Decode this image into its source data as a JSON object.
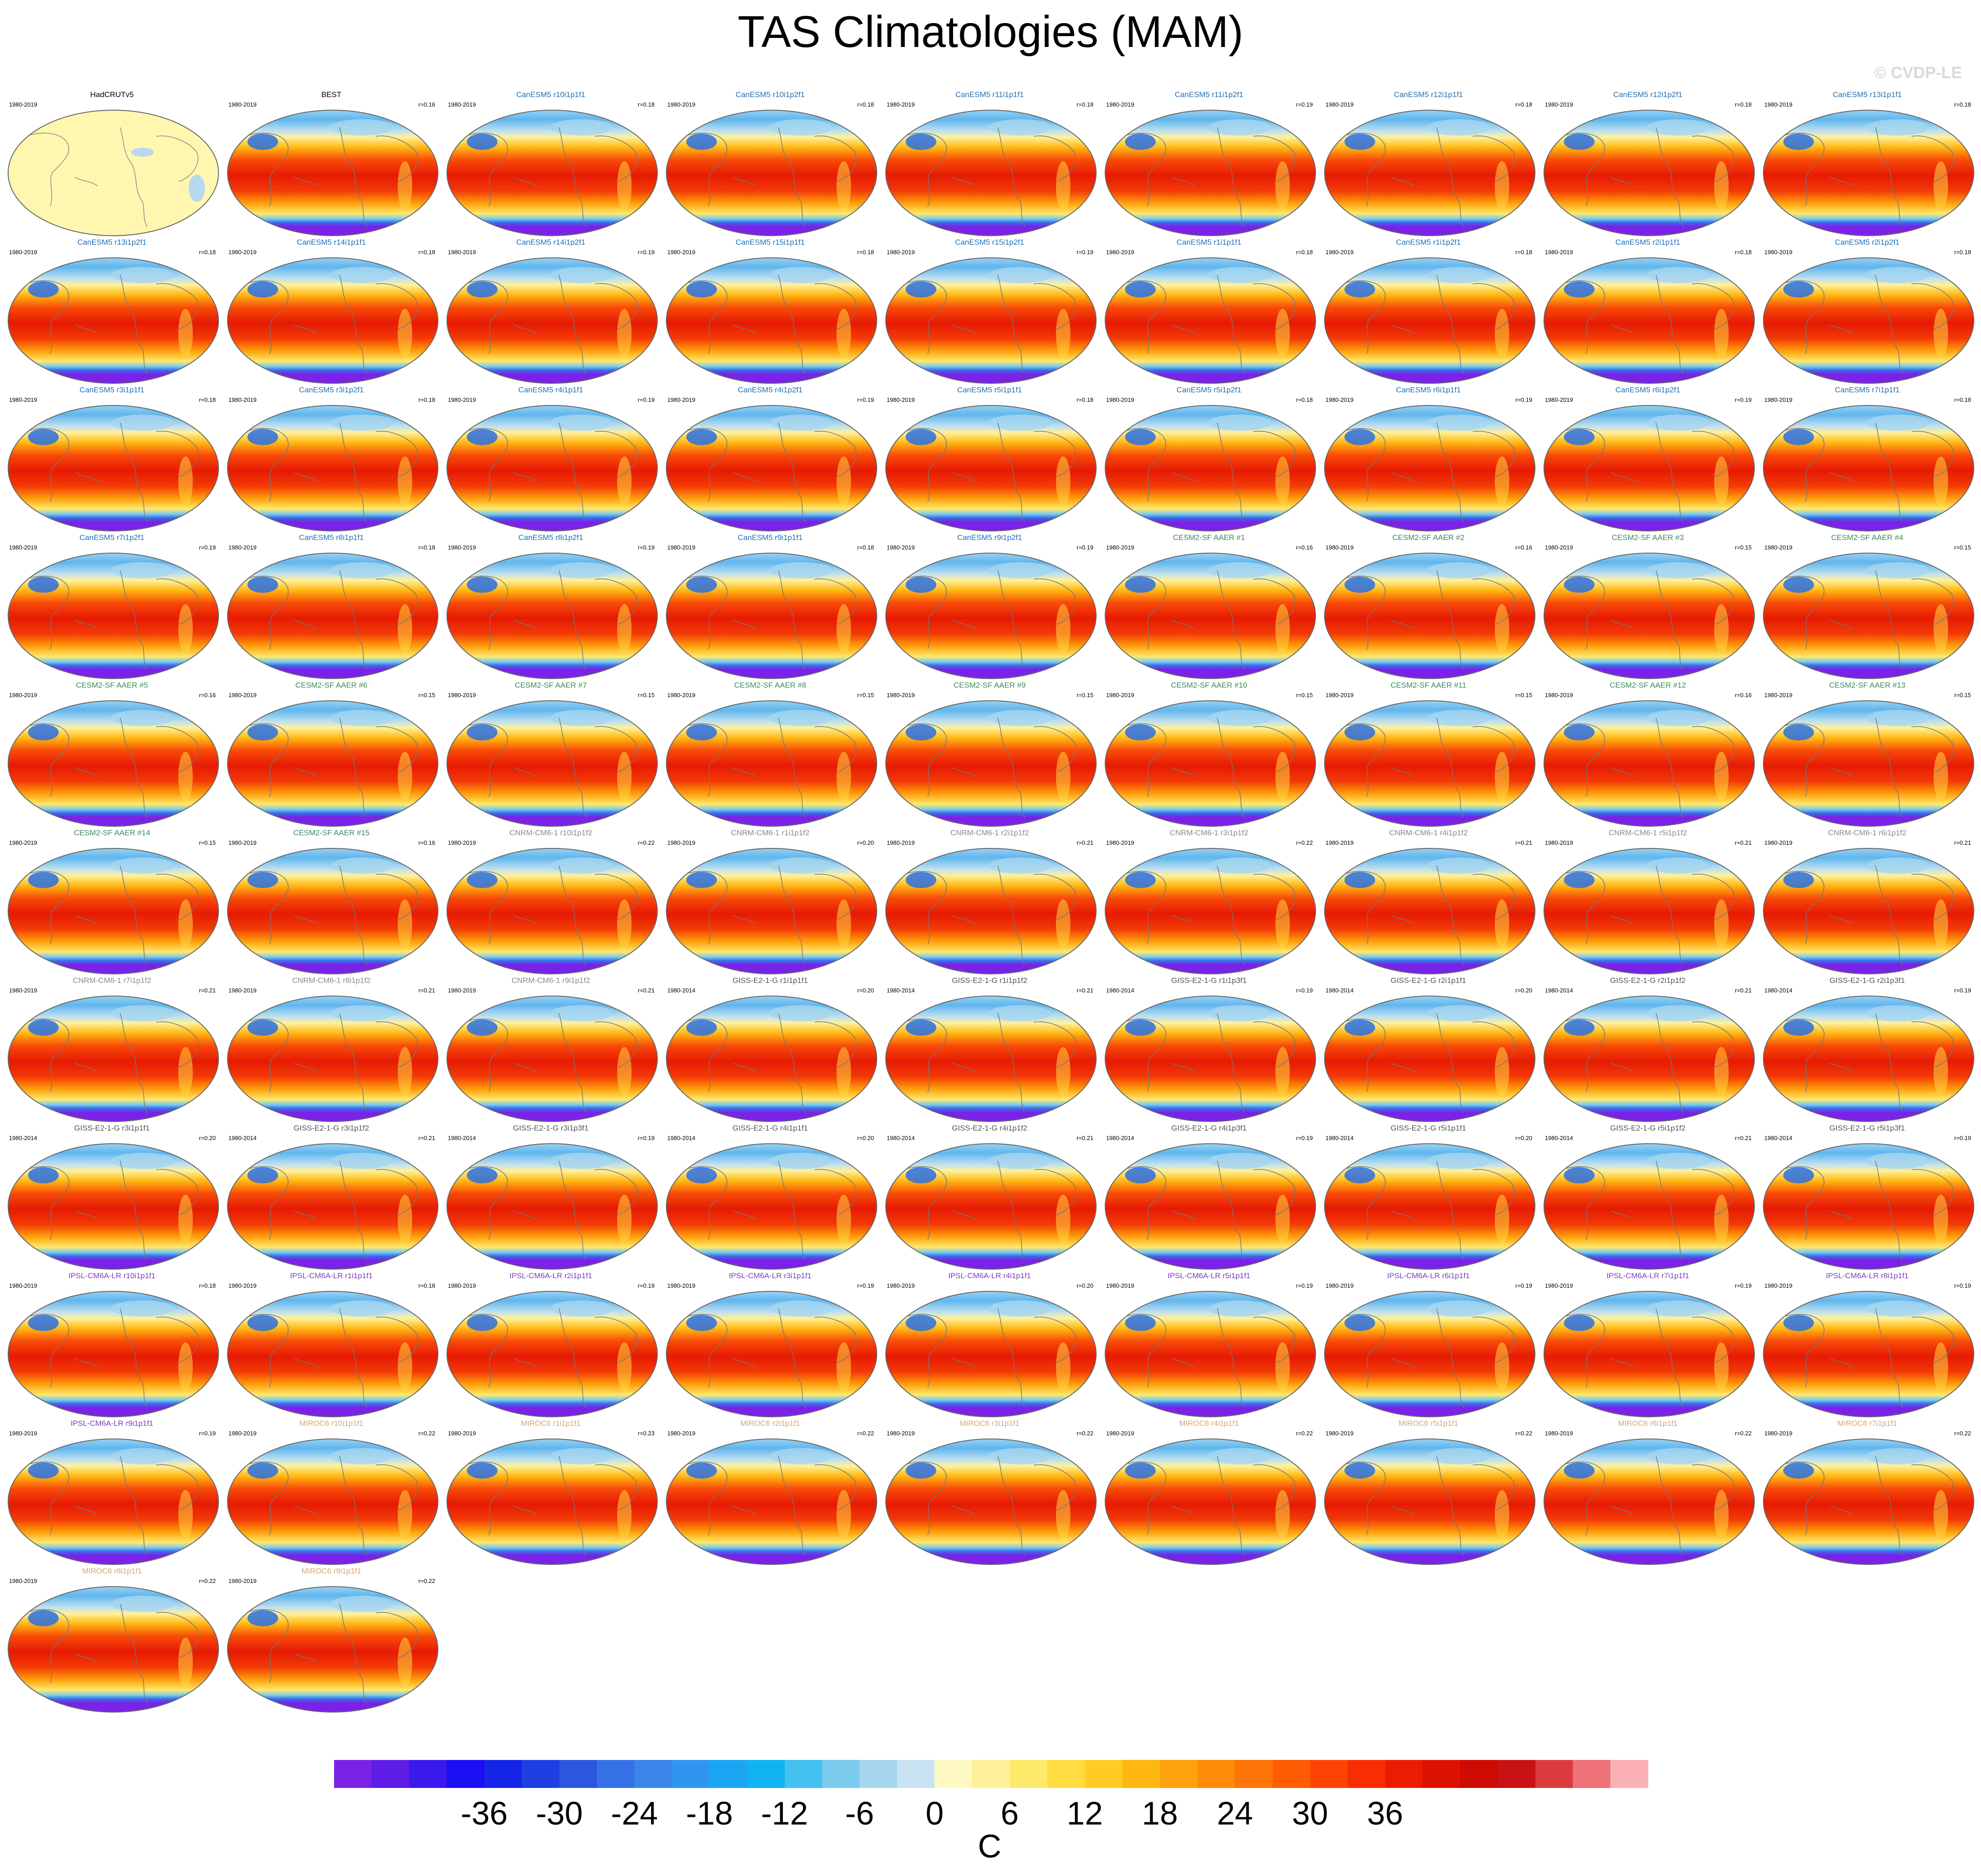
{
  "title": "TAS Climatologies (MAM)",
  "watermark": "© CVDP-LE",
  "colors": {
    "CanESM5": "#1f6fb5",
    "CESM2-SF AAER": "#3b8a5a",
    "CNRM-CM6-1": "#8a8a8a",
    "GISS-E2-1-G": "#555555",
    "IPSL-CM6A-LR": "#7b3fb8",
    "MIROC6": "#d4a574",
    "observation": "#000000"
  },
  "panels": [
    {
      "title": "HadCRUTv5",
      "years": "1980-2019",
      "corr": "",
      "group": "observation",
      "observation": true
    },
    {
      "title": "BEST",
      "years": "1980-2019",
      "corr": "r=0.16",
      "group": "observation"
    },
    {
      "title": "CanESM5 r10i1p1f1",
      "years": "1980-2019",
      "corr": "r=0.18",
      "group": "CanESM5"
    },
    {
      "title": "CanESM5 r10i1p2f1",
      "years": "1980-2019",
      "corr": "r=0.18",
      "group": "CanESM5"
    },
    {
      "title": "CanESM5 r11i1p1f1",
      "years": "1980-2019",
      "corr": "r=0.18",
      "group": "CanESM5"
    },
    {
      "title": "CanESM5 r11i1p2f1",
      "years": "1980-2019",
      "corr": "r=0.19",
      "group": "CanESM5"
    },
    {
      "title": "CanESM5 r12i1p1f1",
      "years": "1980-2019",
      "corr": "r=0.18",
      "group": "CanESM5"
    },
    {
      "title": "CanESM5 r12i1p2f1",
      "years": "1980-2019",
      "corr": "r=0.18",
      "group": "CanESM5"
    },
    {
      "title": "CanESM5 r13i1p1f1",
      "years": "1980-2019",
      "corr": "r=0.18",
      "group": "CanESM5"
    },
    {
      "title": "CanESM5 r13i1p2f1",
      "years": "1980-2019",
      "corr": "r=0.18",
      "group": "CanESM5"
    },
    {
      "title": "CanESM5 r14i1p1f1",
      "years": "1980-2019",
      "corr": "r=0.18",
      "group": "CanESM5"
    },
    {
      "title": "CanESM5 r14i1p2f1",
      "years": "1980-2019",
      "corr": "r=0.19",
      "group": "CanESM5"
    },
    {
      "title": "CanESM5 r15i1p1f1",
      "years": "1980-2019",
      "corr": "r=0.18",
      "group": "CanESM5"
    },
    {
      "title": "CanESM5 r15i1p2f1",
      "years": "1980-2019",
      "corr": "r=0.19",
      "group": "CanESM5"
    },
    {
      "title": "CanESM5 r1i1p1f1",
      "years": "1980-2019",
      "corr": "r=0.18",
      "group": "CanESM5"
    },
    {
      "title": "CanESM5 r1i1p2f1",
      "years": "1980-2019",
      "corr": "r=0.18",
      "group": "CanESM5"
    },
    {
      "title": "CanESM5 r2i1p1f1",
      "years": "1980-2019",
      "corr": "r=0.18",
      "group": "CanESM5"
    },
    {
      "title": "CanESM5 r2i1p2f1",
      "years": "1980-2019",
      "corr": "r=0.18",
      "group": "CanESM5"
    },
    {
      "title": "CanESM5 r3i1p1f1",
      "years": "1980-2019",
      "corr": "r=0.18",
      "group": "CanESM5"
    },
    {
      "title": "CanESM5 r3i1p2f1",
      "years": "1980-2019",
      "corr": "r=0.18",
      "group": "CanESM5"
    },
    {
      "title": "CanESM5 r4i1p1f1",
      "years": "1980-2019",
      "corr": "r=0.19",
      "group": "CanESM5"
    },
    {
      "title": "CanESM5 r4i1p2f1",
      "years": "1980-2019",
      "corr": "r=0.19",
      "group": "CanESM5"
    },
    {
      "title": "CanESM5 r5i1p1f1",
      "years": "1980-2019",
      "corr": "r=0.18",
      "group": "CanESM5"
    },
    {
      "title": "CanESM5 r5i1p2f1",
      "years": "1980-2019",
      "corr": "r=0.18",
      "group": "CanESM5"
    },
    {
      "title": "CanESM5 r6i1p1f1",
      "years": "1980-2019",
      "corr": "r=0.19",
      "group": "CanESM5"
    },
    {
      "title": "CanESM5 r6i1p2f1",
      "years": "1980-2019",
      "corr": "r=0.19",
      "group": "CanESM5"
    },
    {
      "title": "CanESM5 r7i1p1f1",
      "years": "1980-2019",
      "corr": "r=0.18",
      "group": "CanESM5"
    },
    {
      "title": "CanESM5 r7i1p2f1",
      "years": "1980-2019",
      "corr": "r=0.19",
      "group": "CanESM5"
    },
    {
      "title": "CanESM5 r8i1p1f1",
      "years": "1980-2019",
      "corr": "r=0.18",
      "group": "CanESM5"
    },
    {
      "title": "CanESM5 r8i1p2f1",
      "years": "1980-2019",
      "corr": "r=0.19",
      "group": "CanESM5"
    },
    {
      "title": "CanESM5 r9i1p1f1",
      "years": "1980-2019",
      "corr": "r=0.18",
      "group": "CanESM5"
    },
    {
      "title": "CanESM5 r9i1p2f1",
      "years": "1980-2019",
      "corr": "r=0.19",
      "group": "CanESM5"
    },
    {
      "title": "CESM2-SF AAER #1",
      "years": "1980-2019",
      "corr": "r=0.16",
      "group": "CESM2-SF AAER"
    },
    {
      "title": "CESM2-SF AAER #2",
      "years": "1980-2019",
      "corr": "r=0.16",
      "group": "CESM2-SF AAER"
    },
    {
      "title": "CESM2-SF AAER #3",
      "years": "1980-2019",
      "corr": "r=0.15",
      "group": "CESM2-SF AAER"
    },
    {
      "title": "CESM2-SF AAER #4",
      "years": "1980-2019",
      "corr": "r=0.15",
      "group": "CESM2-SF AAER"
    },
    {
      "title": "CESM2-SF AAER #5",
      "years": "1980-2019",
      "corr": "r=0.16",
      "group": "CESM2-SF AAER"
    },
    {
      "title": "CESM2-SF AAER #6",
      "years": "1980-2019",
      "corr": "r=0.15",
      "group": "CESM2-SF AAER"
    },
    {
      "title": "CESM2-SF AAER #7",
      "years": "1980-2019",
      "corr": "r=0.15",
      "group": "CESM2-SF AAER"
    },
    {
      "title": "CESM2-SF AAER #8",
      "years": "1980-2019",
      "corr": "r=0.15",
      "group": "CESM2-SF AAER"
    },
    {
      "title": "CESM2-SF AAER #9",
      "years": "1980-2019",
      "corr": "r=0.15",
      "group": "CESM2-SF AAER"
    },
    {
      "title": "CESM2-SF AAER #10",
      "years": "1980-2019",
      "corr": "r=0.15",
      "group": "CESM2-SF AAER"
    },
    {
      "title": "CESM2-SF AAER #11",
      "years": "1980-2019",
      "corr": "r=0.15",
      "group": "CESM2-SF AAER"
    },
    {
      "title": "CESM2-SF AAER #12",
      "years": "1980-2019",
      "corr": "r=0.16",
      "group": "CESM2-SF AAER"
    },
    {
      "title": "CESM2-SF AAER #13",
      "years": "1980-2019",
      "corr": "r=0.15",
      "group": "CESM2-SF AAER"
    },
    {
      "title": "CESM2-SF AAER #14",
      "years": "1980-2019",
      "corr": "r=0.15",
      "group": "CESM2-SF AAER"
    },
    {
      "title": "CESM2-SF AAER #15",
      "years": "1980-2019",
      "corr": "r=0.16",
      "group": "CESM2-SF AAER"
    },
    {
      "title": "CNRM-CM6-1 r10i1p1f2",
      "years": "1980-2019",
      "corr": "r=0.22",
      "group": "CNRM-CM6-1"
    },
    {
      "title": "CNRM-CM6-1 r1i1p1f2",
      "years": "1980-2019",
      "corr": "r=0.20",
      "group": "CNRM-CM6-1"
    },
    {
      "title": "CNRM-CM6-1 r2i1p1f2",
      "years": "1980-2019",
      "corr": "r=0.21",
      "group": "CNRM-CM6-1"
    },
    {
      "title": "CNRM-CM6-1 r3i1p1f2",
      "years": "1980-2019",
      "corr": "r=0.22",
      "group": "CNRM-CM6-1"
    },
    {
      "title": "CNRM-CM6-1 r4i1p1f2",
      "years": "1980-2019",
      "corr": "r=0.21",
      "group": "CNRM-CM6-1"
    },
    {
      "title": "CNRM-CM6-1 r5i1p1f2",
      "years": "1980-2019",
      "corr": "r=0.21",
      "group": "CNRM-CM6-1"
    },
    {
      "title": "CNRM-CM6-1 r6i1p1f2",
      "years": "1980-2019",
      "corr": "r=0.21",
      "group": "CNRM-CM6-1"
    },
    {
      "title": "CNRM-CM6-1 r7i1p1f2",
      "years": "1980-2019",
      "corr": "r=0.21",
      "group": "CNRM-CM6-1"
    },
    {
      "title": "CNRM-CM6-1 r8i1p1f2",
      "years": "1980-2019",
      "corr": "r=0.21",
      "group": "CNRM-CM6-1"
    },
    {
      "title": "CNRM-CM6-1 r9i1p1f2",
      "years": "1980-2019",
      "corr": "r=0.21",
      "group": "CNRM-CM6-1"
    },
    {
      "title": "GISS-E2-1-G r1i1p1f1",
      "years": "1980-2014",
      "corr": "r=0.20",
      "group": "GISS-E2-1-G"
    },
    {
      "title": "GISS-E2-1-G r1i1p1f2",
      "years": "1980-2014",
      "corr": "r=0.21",
      "group": "GISS-E2-1-G"
    },
    {
      "title": "GISS-E2-1-G r1i1p3f1",
      "years": "1980-2014",
      "corr": "r=0.19",
      "group": "GISS-E2-1-G"
    },
    {
      "title": "GISS-E2-1-G r2i1p1f1",
      "years": "1980-2014",
      "corr": "r=0.20",
      "group": "GISS-E2-1-G"
    },
    {
      "title": "GISS-E2-1-G r2i1p1f2",
      "years": "1980-2014",
      "corr": "r=0.21",
      "group": "GISS-E2-1-G"
    },
    {
      "title": "GISS-E2-1-G r2i1p3f1",
      "years": "1980-2014",
      "corr": "r=0.19",
      "group": "GISS-E2-1-G"
    },
    {
      "title": "GISS-E2-1-G r3i1p1f1",
      "years": "1980-2014",
      "corr": "r=0.20",
      "group": "GISS-E2-1-G"
    },
    {
      "title": "GISS-E2-1-G r3i1p1f2",
      "years": "1980-2014",
      "corr": "r=0.21",
      "group": "GISS-E2-1-G"
    },
    {
      "title": "GISS-E2-1-G r3i1p3f1",
      "years": "1980-2014",
      "corr": "r=0.19",
      "group": "GISS-E2-1-G"
    },
    {
      "title": "GISS-E2-1-G r4i1p1f1",
      "years": "1980-2014",
      "corr": "r=0.20",
      "group": "GISS-E2-1-G"
    },
    {
      "title": "GISS-E2-1-G r4i1p1f2",
      "years": "1980-2014",
      "corr": "r=0.21",
      "group": "GISS-E2-1-G"
    },
    {
      "title": "GISS-E2-1-G r4i1p3f1",
      "years": "1980-2014",
      "corr": "r=0.19",
      "group": "GISS-E2-1-G"
    },
    {
      "title": "GISS-E2-1-G r5i1p1f1",
      "years": "1980-2014",
      "corr": "r=0.20",
      "group": "GISS-E2-1-G"
    },
    {
      "title": "GISS-E2-1-G r5i1p1f2",
      "years": "1980-2014",
      "corr": "r=0.21",
      "group": "GISS-E2-1-G"
    },
    {
      "title": "GISS-E2-1-G r5i1p3f1",
      "years": "1980-2014",
      "corr": "r=0.19",
      "group": "GISS-E2-1-G"
    },
    {
      "title": "IPSL-CM6A-LR r10i1p1f1",
      "years": "1980-2019",
      "corr": "r=0.18",
      "group": "IPSL-CM6A-LR"
    },
    {
      "title": "IPSL-CM6A-LR r1i1p1f1",
      "years": "1980-2019",
      "corr": "r=0.18",
      "group": "IPSL-CM6A-LR"
    },
    {
      "title": "IPSL-CM6A-LR r2i1p1f1",
      "years": "1980-2019",
      "corr": "r=0.19",
      "group": "IPSL-CM6A-LR"
    },
    {
      "title": "IPSL-CM6A-LR r3i1p1f1",
      "years": "1980-2019",
      "corr": "r=0.19",
      "group": "IPSL-CM6A-LR"
    },
    {
      "title": "IPSL-CM6A-LR r4i1p1f1",
      "years": "1980-2019",
      "corr": "r=0.20",
      "group": "IPSL-CM6A-LR"
    },
    {
      "title": "IPSL-CM6A-LR r5i1p1f1",
      "years": "1980-2019",
      "corr": "r=0.19",
      "group": "IPSL-CM6A-LR"
    },
    {
      "title": "IPSL-CM6A-LR r6i1p1f1",
      "years": "1980-2019",
      "corr": "r=0.19",
      "group": "IPSL-CM6A-LR"
    },
    {
      "title": "IPSL-CM6A-LR r7i1p1f1",
      "years": "1980-2019",
      "corr": "r=0.19",
      "group": "IPSL-CM6A-LR"
    },
    {
      "title": "IPSL-CM6A-LR r8i1p1f1",
      "years": "1980-2019",
      "corr": "r=0.19",
      "group": "IPSL-CM6A-LR"
    },
    {
      "title": "IPSL-CM6A-LR r9i1p1f1",
      "years": "1980-2019",
      "corr": "r=0.19",
      "group": "IPSL-CM6A-LR"
    },
    {
      "title": "MIROC6 r10i1p1f1",
      "years": "1980-2019",
      "corr": "r=0.22",
      "group": "MIROC6"
    },
    {
      "title": "MIROC6 r1i1p1f1",
      "years": "1980-2019",
      "corr": "r=0.23",
      "group": "MIROC6"
    },
    {
      "title": "MIROC6 r2i1p1f1",
      "years": "1980-2019",
      "corr": "r=0.22",
      "group": "MIROC6"
    },
    {
      "title": "MIROC6 r3i1p1f1",
      "years": "1980-2019",
      "corr": "r=0.22",
      "group": "MIROC6"
    },
    {
      "title": "MIROC6 r4i1p1f1",
      "years": "1980-2019",
      "corr": "r=0.22",
      "group": "MIROC6"
    },
    {
      "title": "MIROC6 r5i1p1f1",
      "years": "1980-2019",
      "corr": "r=0.22",
      "group": "MIROC6"
    },
    {
      "title": "MIROC6 r6i1p1f1",
      "years": "1980-2019",
      "corr": "r=0.22",
      "group": "MIROC6"
    },
    {
      "title": "MIROC6 r7i1p1f1",
      "years": "1980-2019",
      "corr": "r=0.22",
      "group": "MIROC6"
    },
    {
      "title": "MIROC6 r8i1p1f1",
      "years": "1980-2019",
      "corr": "r=0.22",
      "group": "MIROC6"
    },
    {
      "title": "MIROC6 r9i1p1f1",
      "years": "1980-2019",
      "corr": "r=0.22",
      "group": "MIROC6"
    }
  ],
  "colorbar": {
    "units": "C",
    "tick_labels": [
      "-36",
      "-30",
      "-24",
      "-18",
      "-12",
      "-6",
      "0",
      "6",
      "12",
      "18",
      "24",
      "30",
      "36"
    ],
    "colors": [
      "#7b22e8",
      "#5e1ee8",
      "#3a19ec",
      "#1a0ff5",
      "#1525e8",
      "#1f3fe3",
      "#2c56de",
      "#3570e6",
      "#3a86ea",
      "#2f95ef",
      "#1aa6f2",
      "#10b4f2",
      "#43c1f0",
      "#7ccbef",
      "#a6d6ef",
      "#c9e3f2",
      "#fff9c4",
      "#fff19a",
      "#ffe96b",
      "#ffdc3f",
      "#ffcd22",
      "#ffb712",
      "#ffa10c",
      "#ff8a08",
      "#ff7406",
      "#ff5c04",
      "#ff4303",
      "#f82d02",
      "#ec1c02",
      "#de1102",
      "#cd0b03",
      "#c81215",
      "#db3b3f",
      "#ee7277",
      "#fbb1b4"
    ]
  }
}
